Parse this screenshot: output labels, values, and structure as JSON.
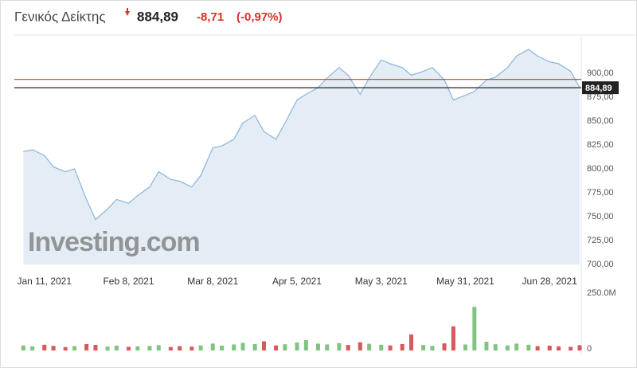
{
  "header": {
    "title": "Γενικός Δείκτης",
    "price": "884,89",
    "change": "-8,71",
    "change_pct": "(-0,97%)"
  },
  "chart_data": [
    {
      "type": "line",
      "watermark": "Investing.com",
      "x": [
        "2021-01-04",
        "2021-01-07",
        "2021-01-11",
        "2021-01-14",
        "2021-01-18",
        "2021-01-21",
        "2021-01-25",
        "2021-01-28",
        "2021-02-01",
        "2021-02-04",
        "2021-02-08",
        "2021-02-11",
        "2021-02-15",
        "2021-02-18",
        "2021-02-22",
        "2021-02-25",
        "2021-03-01",
        "2021-03-04",
        "2021-03-08",
        "2021-03-11",
        "2021-03-15",
        "2021-03-18",
        "2021-03-22",
        "2021-03-25",
        "2021-03-29",
        "2021-04-01",
        "2021-04-05",
        "2021-04-08",
        "2021-04-12",
        "2021-04-15",
        "2021-04-19",
        "2021-04-22",
        "2021-04-26",
        "2021-04-29",
        "2021-05-03",
        "2021-05-06",
        "2021-05-10",
        "2021-05-13",
        "2021-05-17",
        "2021-05-20",
        "2021-05-24",
        "2021-05-27",
        "2021-05-31",
        "2021-06-03",
        "2021-06-07",
        "2021-06-10",
        "2021-06-14",
        "2021-06-17",
        "2021-06-21",
        "2021-06-24",
        "2021-06-28",
        "2021-07-01",
        "2021-07-05",
        "2021-07-08"
      ],
      "values": [
        818,
        820,
        814,
        802,
        797,
        800,
        768,
        747,
        758,
        768,
        764,
        772,
        781,
        797,
        789,
        787,
        781,
        793,
        822,
        824,
        831,
        848,
        856,
        839,
        831,
        848,
        872,
        878,
        885,
        895,
        906,
        898,
        878,
        895,
        914,
        910,
        906,
        898,
        902,
        906,
        893,
        872,
        877,
        881,
        893,
        896,
        906,
        918,
        925,
        918,
        912,
        910,
        902,
        884.89
      ],
      "color": "#8ab4d8",
      "fill": "#e4edf6",
      "reference_line": 893.6,
      "reference_color": "#c0392b",
      "last_line_color": "#222222",
      "xlim": [
        "2021-01-01",
        "2021-07-08"
      ],
      "xticks": [
        {
          "value": "2021-01-11",
          "label": "Jan 11, 2021"
        },
        {
          "value": "2021-02-08",
          "label": "Feb 8, 2021"
        },
        {
          "value": "2021-03-08",
          "label": "Mar 8, 2021"
        },
        {
          "value": "2021-04-05",
          "label": "Apr 5, 2021"
        },
        {
          "value": "2021-05-03",
          "label": "May 3, 2021"
        },
        {
          "value": "2021-05-31",
          "label": "May 31, 2021"
        },
        {
          "value": "2021-06-28",
          "label": "Jun 28, 2021"
        }
      ],
      "ylim": [
        700,
        937.5
      ],
      "yticks": [
        {
          "value": 700,
          "label": "700,00"
        },
        {
          "value": 725,
          "label": "725,00"
        },
        {
          "value": 750,
          "label": "750,00"
        },
        {
          "value": 775,
          "label": "775,00"
        },
        {
          "value": 800,
          "label": "800,00"
        },
        {
          "value": 825,
          "label": "825,00"
        },
        {
          "value": 850,
          "label": "850,00"
        },
        {
          "value": 875,
          "label": "875,00"
        },
        {
          "value": 900,
          "label": "900,00"
        }
      ],
      "grid": false
    },
    {
      "type": "bar",
      "up_color": "#7fc47f",
      "down_color": "#d9585a",
      "values": [
        22000000,
        18000000,
        25000000,
        20000000,
        15000000,
        19000000,
        28000000,
        24000000,
        17000000,
        21000000,
        16000000,
        18000000,
        20000000,
        23000000,
        15000000,
        19000000,
        17000000,
        22000000,
        30000000,
        21000000,
        26000000,
        33000000,
        28000000,
        40000000,
        22000000,
        27000000,
        35000000,
        45000000,
        30000000,
        26000000,
        32000000,
        24000000,
        36000000,
        29000000,
        25000000,
        22000000,
        28000000,
        70000000,
        24000000,
        20000000,
        31000000,
        105000000,
        26000000,
        190000000,
        38000000,
        27000000,
        22000000,
        30000000,
        25000000,
        19000000,
        21000000,
        18000000,
        16000000,
        23000000
      ],
      "ylim": [
        0,
        250000000
      ],
      "yticks": [
        {
          "value": 250000000,
          "label": "250.0M"
        },
        0
      ]
    }
  ]
}
